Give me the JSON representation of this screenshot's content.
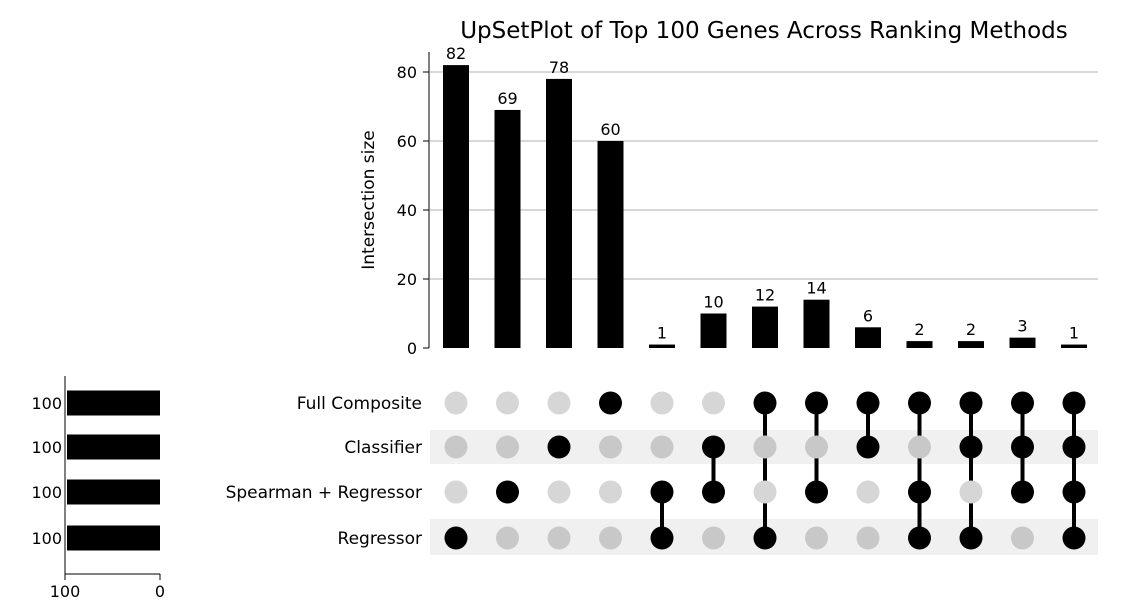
{
  "chart_data": {
    "type": "bar",
    "title": "UpSetPlot of Top 100 Genes Across Ranking Methods",
    "ylabel": "Intersection size",
    "ylim": [
      0,
      86
    ],
    "yticks": [
      0,
      20,
      40,
      60,
      80
    ],
    "grid": true,
    "sets": [
      "Full Composite",
      "Classifier",
      "Spearman + Regressor",
      "Regressor"
    ],
    "set_sizes": [
      100,
      100,
      100,
      100
    ],
    "set_size_ticks": [
      "100",
      "0"
    ],
    "intersections": [
      {
        "members": [
          3
        ],
        "value": 82
      },
      {
        "members": [
          2
        ],
        "value": 69
      },
      {
        "members": [
          1
        ],
        "value": 78
      },
      {
        "members": [
          0
        ],
        "value": 60
      },
      {
        "members": [
          2,
          3
        ],
        "value": 1
      },
      {
        "members": [
          1,
          2
        ],
        "value": 10
      },
      {
        "members": [
          0,
          3
        ],
        "value": 12
      },
      {
        "members": [
          0,
          2
        ],
        "value": 14
      },
      {
        "members": [
          0,
          1
        ],
        "value": 6
      },
      {
        "members": [
          0,
          2,
          3
        ],
        "value": 2
      },
      {
        "members": [
          0,
          1,
          3
        ],
        "value": 2
      },
      {
        "members": [
          0,
          1,
          2
        ],
        "value": 3
      },
      {
        "members": [
          0,
          1,
          2,
          3
        ],
        "value": 1
      }
    ]
  }
}
